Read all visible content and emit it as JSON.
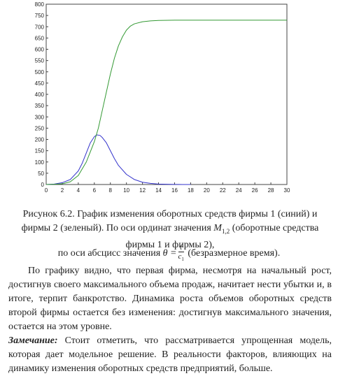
{
  "chart_data": {
    "type": "line",
    "xlim": [
      0,
      30
    ],
    "ylim": [
      0,
      800
    ],
    "x_ticks": [
      "0",
      "2",
      "4",
      "6",
      "8",
      "10",
      "12",
      "14",
      "16",
      "18",
      "20",
      "22",
      "24",
      "26",
      "28",
      "30"
    ],
    "y_ticks": [
      "0",
      "50",
      "100",
      "150",
      "200",
      "250",
      "300",
      "350",
      "400",
      "450",
      "500",
      "550",
      "600",
      "650",
      "700",
      "750",
      "800"
    ],
    "grid": false,
    "series": [
      {
        "color": "#3333cc",
        "x": [
          0,
          1,
          2,
          3,
          4,
          4.5,
          5,
          5.5,
          6,
          6.3,
          6.7,
          7,
          7.5,
          8,
          8.5,
          9,
          10,
          11,
          12,
          13,
          14,
          15,
          16,
          17,
          18
        ],
        "y": [
          0,
          2,
          8,
          22,
          60,
          95,
          140,
          185,
          212,
          220,
          218,
          208,
          185,
          150,
          115,
          85,
          45,
          22,
          10,
          5,
          2,
          1,
          0.5,
          0.2,
          0
        ]
      },
      {
        "color": "#339933",
        "x": [
          0,
          1,
          2,
          3,
          4,
          5,
          6,
          6.5,
          7,
          7.5,
          8,
          8.5,
          9,
          9.5,
          10,
          10.5,
          11,
          12,
          13,
          14,
          16,
          18,
          20,
          25,
          30
        ],
        "y": [
          0,
          1,
          3,
          12,
          40,
          100,
          190,
          250,
          330,
          410,
          490,
          560,
          615,
          655,
          685,
          703,
          713,
          722,
          726,
          728,
          729,
          729,
          729,
          729,
          729
        ]
      }
    ]
  },
  "text": {
    "caption": "Рисунок 6.2. График изменения оборотных средств фирмы 1 (синий) и фирмы 2 (зеленый). По оси ординат значения ",
    "caption_var": "M",
    "caption_sub": "1,2",
    "caption_tail": " (оборотные средства фирмы 1 и фирмы 2),",
    "formula_pre": "по оси абсцисс значения ",
    "formula_lhs": "θ =",
    "formula_num": "t",
    "formula_den": "c",
    "formula_den_sub": "1",
    "formula_post": " (безразмерное время).",
    "body": "По графику видно, что первая фирма, несмотря на начальный рост, достигнув своего максимального объема продаж, начитает нести убытки и, в итоге, терпит банкротство. Динамика роста объемов оборотных средств второй фирмы остается без изменения: достигнув максимального значения, остается на этом уровне.",
    "note_label": "Замечание:",
    "note_text": " Стоит отметить, что рассматривается упрощенная модель, которая дает модельное решение. В реальности факторов, влияющих на динамику изменения оборотных средств предприятий, больше."
  }
}
